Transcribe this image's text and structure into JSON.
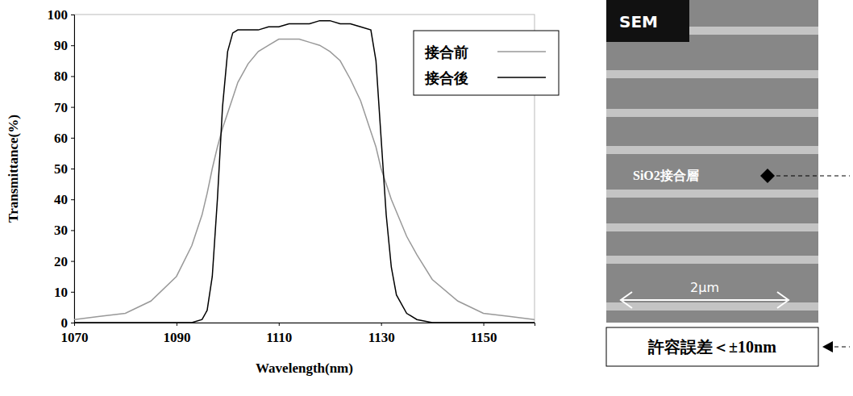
{
  "chart_data": {
    "type": "line",
    "x_label": "Wavelength(nm)",
    "y_label": "Transmittance(%)",
    "x": [
      1070,
      1075,
      1080,
      1085,
      1090,
      1093,
      1095,
      1096,
      1097,
      1098,
      1099,
      1100,
      1101,
      1102,
      1104,
      1106,
      1108,
      1110,
      1112,
      1114,
      1116,
      1118,
      1120,
      1122,
      1124,
      1126,
      1128,
      1129,
      1130,
      1131,
      1132,
      1133,
      1135,
      1137,
      1140,
      1145,
      1150,
      1155,
      1160
    ],
    "series": [
      {
        "name": "接合前",
        "color": "#999999",
        "values": [
          1,
          2,
          3,
          7,
          15,
          25,
          35,
          42,
          50,
          57,
          63,
          68,
          73,
          78,
          84,
          88,
          90,
          92,
          92,
          92,
          91,
          90,
          88,
          85,
          79,
          72,
          62,
          57,
          50,
          45,
          40,
          36,
          28,
          22,
          14,
          7,
          3,
          2,
          1
        ]
      },
      {
        "name": "接合後",
        "color": "#000000",
        "values": [
          0,
          0,
          0,
          0,
          0,
          0,
          1,
          4,
          15,
          40,
          70,
          88,
          94,
          95,
          95,
          95,
          96,
          96,
          97,
          97,
          97,
          98,
          98,
          97,
          97,
          96,
          95,
          85,
          60,
          35,
          18,
          9,
          3,
          1,
          0,
          0,
          0,
          0,
          0
        ]
      }
    ],
    "xlim": [
      1070,
      1160
    ],
    "xticks": [
      1070,
      1090,
      1110,
      1130,
      1150
    ],
    "ylim": [
      0,
      100
    ],
    "yticks": [
      0,
      10,
      20,
      30,
      40,
      50,
      60,
      70,
      80,
      90,
      100
    ],
    "grid": false,
    "legend": "upper right"
  },
  "sem_image": {
    "label": "SEM",
    "layer_label": "SiO2接合層",
    "scale_bar": "2μm"
  },
  "tolerance_note": "許容誤差＜±10nm"
}
